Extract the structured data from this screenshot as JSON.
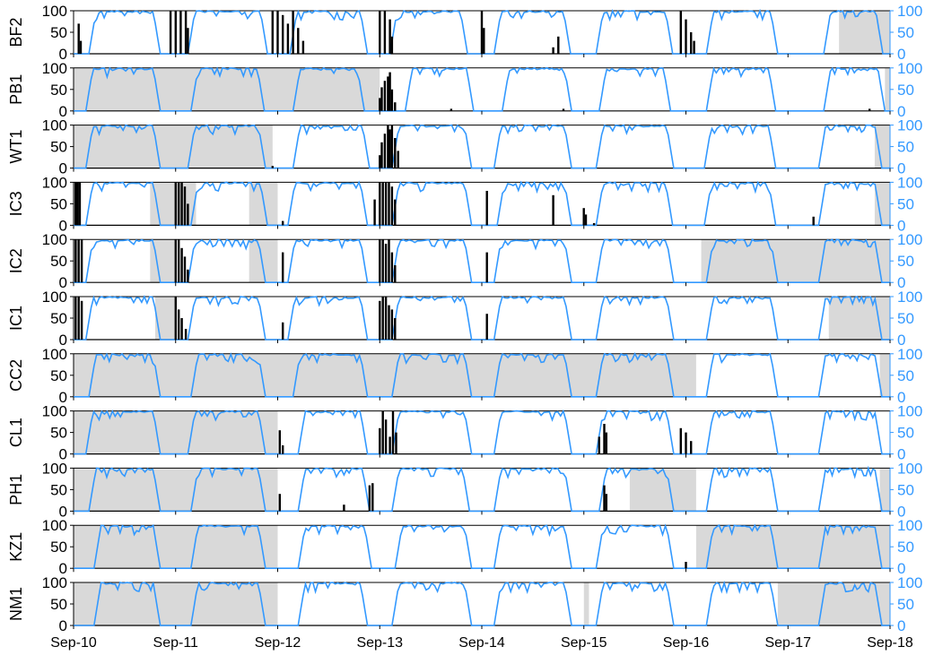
{
  "chart_data": {
    "type": "bar+line multi-panel time series",
    "x_range": [
      "2010-09-10",
      "2010-09-18"
    ],
    "x_ticks": [
      "Sep-10",
      "Sep-11",
      "Sep-12",
      "Sep-13",
      "Sep-14",
      "Sep-15",
      "Sep-16",
      "Sep-17",
      "Sep-18"
    ],
    "left_axis": {
      "ylim": [
        0,
        100
      ],
      "ticks": [
        "0",
        "50",
        "100"
      ],
      "color": "#000000"
    },
    "right_axis": {
      "ylim": [
        0,
        100
      ],
      "ticks": [
        "0",
        "50",
        "100"
      ],
      "color": "#3399FF"
    },
    "colors": {
      "line": "#3399FF",
      "bars": "#000000",
      "shade": "#D9D9D9",
      "baseline": "#000000"
    },
    "panels": [
      {
        "label": "BF2",
        "shaded": [
          [
            7.5,
            8.0
          ]
        ],
        "line_days": [
          [
            0.15,
            0.85
          ],
          [
            1.12,
            1.9
          ],
          [
            2.12,
            2.88
          ],
          [
            3.1,
            3.86
          ],
          [
            4.12,
            4.87
          ],
          [
            5.12,
            5.87
          ],
          [
            6.2,
            6.9
          ],
          [
            7.35,
            7.93
          ]
        ],
        "bars": [
          [
            0.05,
            70
          ],
          [
            0.07,
            30
          ],
          [
            0.95,
            100
          ],
          [
            1.0,
            100
          ],
          [
            1.05,
            100
          ],
          [
            1.1,
            100
          ],
          [
            1.12,
            60
          ],
          [
            1.95,
            100
          ],
          [
            2.0,
            100
          ],
          [
            2.05,
            90
          ],
          [
            2.1,
            70
          ],
          [
            2.15,
            100
          ],
          [
            2.2,
            60
          ],
          [
            2.25,
            30
          ],
          [
            3.0,
            100
          ],
          [
            3.05,
            100
          ],
          [
            3.1,
            80
          ],
          [
            3.12,
            40
          ],
          [
            4.0,
            100
          ],
          [
            4.02,
            60
          ],
          [
            4.7,
            15
          ],
          [
            4.75,
            40
          ],
          [
            5.95,
            100
          ],
          [
            6.0,
            80
          ],
          [
            6.05,
            50
          ],
          [
            6.08,
            30
          ]
        ]
      },
      {
        "label": "PB1",
        "shaded": [
          [
            0.0,
            3.0
          ],
          [
            7.95,
            8.0
          ]
        ],
        "line_days": [
          [
            0.12,
            0.85
          ],
          [
            1.15,
            1.87
          ],
          [
            2.15,
            2.85
          ],
          [
            3.25,
            3.92
          ],
          [
            4.2,
            4.88
          ],
          [
            5.15,
            5.85
          ],
          [
            6.2,
            6.88
          ],
          [
            7.35,
            7.95
          ]
        ],
        "bars": [
          [
            3.0,
            30
          ],
          [
            3.02,
            55
          ],
          [
            3.05,
            70
          ],
          [
            3.08,
            80
          ],
          [
            3.1,
            90
          ],
          [
            3.12,
            50
          ],
          [
            3.15,
            20
          ],
          [
            3.7,
            5
          ],
          [
            4.8,
            5
          ],
          [
            7.8,
            5
          ]
        ]
      },
      {
        "label": "WT1",
        "shaded": [
          [
            0.0,
            1.95
          ],
          [
            7.85,
            8.0
          ]
        ],
        "line_days": [
          [
            0.12,
            0.85
          ],
          [
            1.12,
            1.88
          ],
          [
            2.15,
            2.9
          ],
          [
            3.12,
            3.9
          ],
          [
            4.12,
            4.88
          ],
          [
            5.12,
            5.88
          ],
          [
            6.18,
            6.88
          ],
          [
            7.3,
            7.92
          ]
        ],
        "bars": [
          [
            1.95,
            5
          ],
          [
            3.0,
            30
          ],
          [
            3.02,
            60
          ],
          [
            3.05,
            80
          ],
          [
            3.08,
            100
          ],
          [
            3.1,
            90
          ],
          [
            3.12,
            100
          ],
          [
            3.15,
            70
          ],
          [
            3.18,
            40
          ]
        ]
      },
      {
        "label": "IC3",
        "shaded": [
          [
            0.0,
            0.08
          ],
          [
            0.75,
            1.2
          ],
          [
            1.72,
            2.0
          ],
          [
            7.85,
            8.0
          ]
        ],
        "line_days": [
          [
            0.12,
            0.85
          ],
          [
            1.15,
            1.9
          ],
          [
            2.1,
            2.88
          ],
          [
            3.12,
            3.9
          ],
          [
            4.15,
            4.88
          ],
          [
            5.12,
            5.87
          ],
          [
            6.18,
            6.88
          ],
          [
            7.3,
            7.92
          ]
        ],
        "bars": [
          [
            0.02,
            100
          ],
          [
            0.04,
            100
          ],
          [
            0.06,
            100
          ],
          [
            1.0,
            100
          ],
          [
            1.03,
            100
          ],
          [
            1.06,
            100
          ],
          [
            1.09,
            90
          ],
          [
            1.12,
            50
          ],
          [
            2.05,
            10
          ],
          [
            2.95,
            60
          ],
          [
            3.0,
            100
          ],
          [
            3.03,
            100
          ],
          [
            3.06,
            100
          ],
          [
            3.09,
            100
          ],
          [
            3.12,
            90
          ],
          [
            3.15,
            60
          ],
          [
            4.05,
            80
          ],
          [
            4.7,
            70
          ],
          [
            5.0,
            40
          ],
          [
            5.02,
            25
          ],
          [
            5.1,
            5
          ],
          [
            7.25,
            20
          ]
        ]
      },
      {
        "label": "IC2",
        "shaded": [
          [
            0.0,
            0.05
          ],
          [
            0.75,
            1.0
          ],
          [
            1.72,
            2.0
          ],
          [
            6.15,
            8.0
          ]
        ],
        "line_days": [
          [
            0.12,
            0.85
          ],
          [
            1.12,
            1.88
          ],
          [
            2.1,
            2.88
          ],
          [
            3.12,
            3.9
          ],
          [
            4.12,
            4.88
          ],
          [
            5.12,
            5.88
          ],
          [
            6.2,
            6.9
          ],
          [
            7.3,
            7.92
          ]
        ],
        "bars": [
          [
            0.02,
            100
          ],
          [
            0.05,
            100
          ],
          [
            0.08,
            100
          ],
          [
            1.0,
            100
          ],
          [
            1.03,
            100
          ],
          [
            1.06,
            80
          ],
          [
            1.09,
            60
          ],
          [
            1.12,
            30
          ],
          [
            2.05,
            70
          ],
          [
            3.0,
            100
          ],
          [
            3.03,
            100
          ],
          [
            3.06,
            90
          ],
          [
            3.09,
            100
          ],
          [
            3.12,
            70
          ],
          [
            3.15,
            40
          ],
          [
            4.05,
            70
          ]
        ]
      },
      {
        "label": "IC1",
        "shaded": [
          [
            0.8,
            1.0
          ],
          [
            7.4,
            8.0
          ]
        ],
        "line_days": [
          [
            0.12,
            0.85
          ],
          [
            1.12,
            1.88
          ],
          [
            2.1,
            2.88
          ],
          [
            3.12,
            3.9
          ],
          [
            4.12,
            4.88
          ],
          [
            5.12,
            5.88
          ],
          [
            6.2,
            6.9
          ],
          [
            7.3,
            7.92
          ]
        ],
        "bars": [
          [
            0.02,
            100
          ],
          [
            0.05,
            100
          ],
          [
            0.08,
            90
          ],
          [
            1.0,
            100
          ],
          [
            1.03,
            70
          ],
          [
            1.06,
            50
          ],
          [
            1.1,
            25
          ],
          [
            2.05,
            40
          ],
          [
            3.0,
            90
          ],
          [
            3.03,
            100
          ],
          [
            3.06,
            100
          ],
          [
            3.09,
            80
          ],
          [
            3.12,
            70
          ],
          [
            3.15,
            50
          ],
          [
            4.05,
            60
          ]
        ]
      },
      {
        "label": "CC2",
        "shaded": [
          [
            0.0,
            6.1
          ],
          [
            7.9,
            8.0
          ]
        ],
        "line_days": [
          [
            0.15,
            0.85
          ],
          [
            1.15,
            1.88
          ],
          [
            2.15,
            2.88
          ],
          [
            3.12,
            3.9
          ],
          [
            4.12,
            4.88
          ],
          [
            5.12,
            5.88
          ],
          [
            6.2,
            6.9
          ],
          [
            7.3,
            7.92
          ]
        ],
        "bars": []
      },
      {
        "label": "CL1",
        "shaded": [
          [
            0.0,
            2.0
          ]
        ],
        "line_days": [
          [
            0.12,
            0.85
          ],
          [
            1.12,
            1.88
          ],
          [
            2.2,
            2.88
          ],
          [
            3.12,
            3.9
          ],
          [
            4.12,
            4.88
          ],
          [
            5.12,
            5.88
          ],
          [
            6.2,
            6.9
          ],
          [
            7.3,
            7.92
          ]
        ],
        "bars": [
          [
            2.02,
            55
          ],
          [
            2.05,
            20
          ],
          [
            3.0,
            60
          ],
          [
            3.03,
            100
          ],
          [
            3.06,
            80
          ],
          [
            3.1,
            40
          ],
          [
            3.13,
            100
          ],
          [
            3.16,
            50
          ],
          [
            5.15,
            40
          ],
          [
            5.2,
            70
          ],
          [
            5.22,
            50
          ],
          [
            5.95,
            60
          ],
          [
            6.0,
            50
          ],
          [
            6.05,
            30
          ]
        ]
      },
      {
        "label": "PH1",
        "shaded": [
          [
            0.0,
            2.0
          ],
          [
            5.45,
            6.1
          ],
          [
            7.9,
            8.0
          ]
        ],
        "line_days": [
          [
            0.15,
            0.85
          ],
          [
            1.15,
            1.88
          ],
          [
            2.2,
            2.9
          ],
          [
            3.12,
            3.88
          ],
          [
            4.12,
            4.88
          ],
          [
            5.15,
            5.88
          ],
          [
            6.2,
            6.9
          ],
          [
            7.3,
            7.92
          ]
        ],
        "bars": [
          [
            2.02,
            40
          ],
          [
            2.65,
            15
          ],
          [
            2.9,
            60
          ],
          [
            2.93,
            65
          ],
          [
            5.2,
            60
          ],
          [
            5.22,
            40
          ]
        ]
      },
      {
        "label": "KZ1",
        "shaded": [
          [
            0.0,
            2.0
          ],
          [
            6.1,
            8.0
          ]
        ],
        "line_days": [
          [
            0.2,
            0.85
          ],
          [
            1.15,
            1.88
          ],
          [
            2.2,
            2.92
          ],
          [
            3.15,
            3.9
          ],
          [
            4.12,
            4.88
          ],
          [
            5.12,
            5.88
          ],
          [
            6.2,
            6.9
          ],
          [
            7.3,
            7.92
          ]
        ],
        "bars": [
          [
            6.0,
            15
          ]
        ]
      },
      {
        "label": "NM1",
        "shaded": [
          [
            0.0,
            2.0
          ],
          [
            5.0,
            5.05
          ],
          [
            6.9,
            8.0
          ]
        ],
        "line_days": [
          [
            0.2,
            0.85
          ],
          [
            1.15,
            1.88
          ],
          [
            2.2,
            2.88
          ],
          [
            3.12,
            3.9
          ],
          [
            4.12,
            4.88
          ],
          [
            5.12,
            5.88
          ],
          [
            6.2,
            6.9
          ],
          [
            7.3,
            7.92
          ]
        ],
        "bars": []
      }
    ]
  }
}
